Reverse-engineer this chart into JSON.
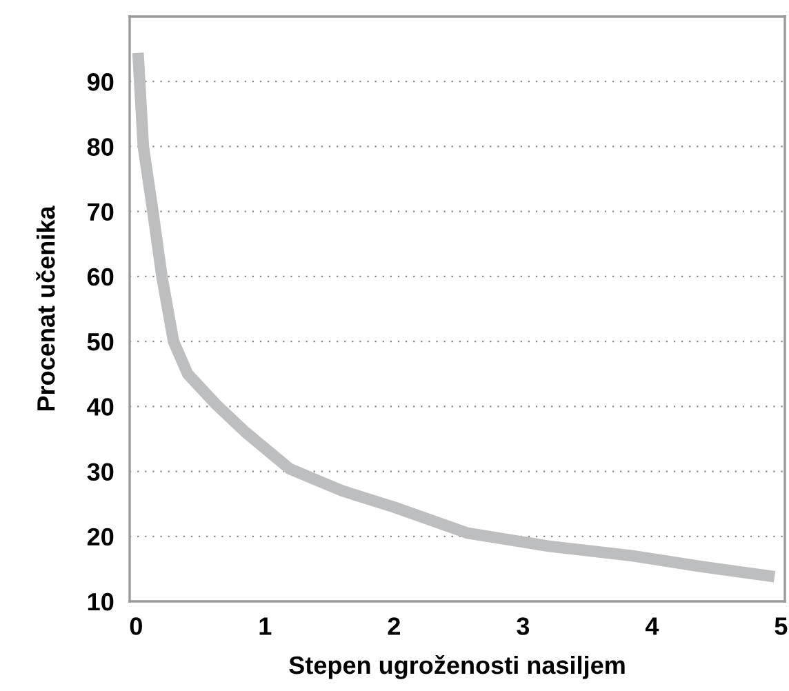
{
  "chart_data": {
    "type": "line",
    "xlabel": "Stepen ugroženosti nasiljem",
    "ylabel": "Procenat učenika",
    "xlim": [
      -0.05,
      5.03
    ],
    "ylim": [
      10,
      100
    ],
    "xticks": [
      0,
      1,
      2,
      3,
      4,
      5
    ],
    "yticks": [
      10,
      20,
      30,
      40,
      50,
      60,
      70,
      80,
      90
    ],
    "grid": "y",
    "series": [
      {
        "color": "#bdbebf",
        "x": [
          0.015,
          0.056,
          0.13,
          0.2,
          0.29,
          0.4,
          0.62,
          0.85,
          1.19,
          1.6,
          2.0,
          2.57,
          3.2,
          3.85,
          4.4,
          4.95
        ],
        "values": [
          94.4,
          80,
          70,
          60,
          50,
          45,
          40.3,
          36,
          30.4,
          27,
          24.5,
          20.5,
          18.5,
          17,
          15.3,
          13.8
        ]
      }
    ]
  }
}
